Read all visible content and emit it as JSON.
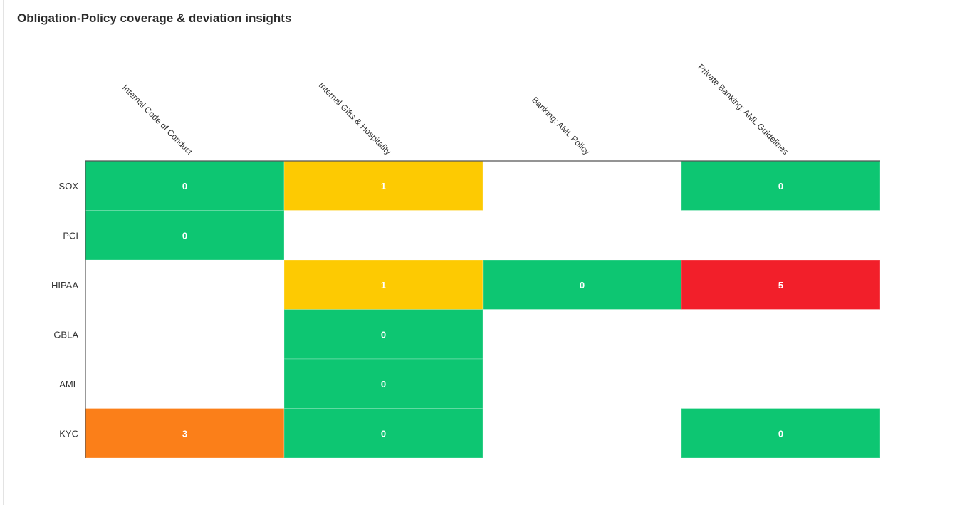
{
  "title": "Obligation-Policy coverage & deviation insights",
  "colors": {
    "zero": "#0dc672",
    "one": "#fdca02",
    "three": "#fb7f19",
    "five": "#f21f2a",
    "axis": "#555555"
  },
  "chart_data": {
    "type": "heatmap",
    "title": "Obligation-Policy coverage & deviation insights",
    "columns": [
      "Internal Code of Conduct",
      "Internal Gifts & Hospitality",
      "Banking: AML Policy",
      "Private Banking: AML Guidelines"
    ],
    "rows": [
      "SOX",
      "PCI",
      "HIPAA",
      "GBLA",
      "AML",
      "KYC"
    ],
    "values": [
      [
        0,
        1,
        null,
        0
      ],
      [
        0,
        null,
        null,
        null
      ],
      [
        null,
        1,
        0,
        5
      ],
      [
        null,
        0,
        null,
        null
      ],
      [
        null,
        0,
        null,
        null
      ],
      [
        3,
        0,
        null,
        0
      ]
    ],
    "color_scale": [
      {
        "value": 0,
        "color": "#0dc672"
      },
      {
        "value": 1,
        "color": "#fdca02"
      },
      {
        "value": 3,
        "color": "#fb7f19"
      },
      {
        "value": 5,
        "color": "#f21f2a"
      }
    ],
    "legend": false
  }
}
